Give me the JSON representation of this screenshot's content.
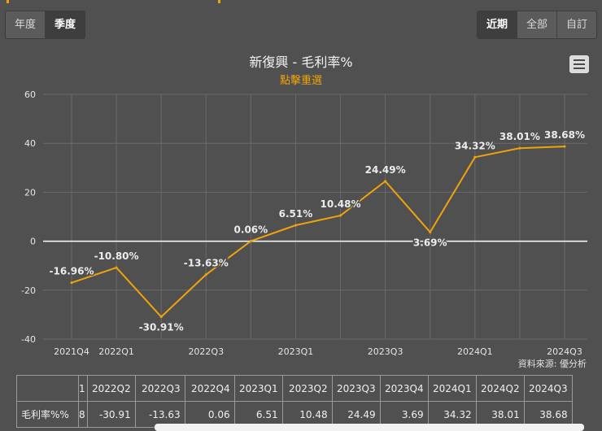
{
  "period_tabs": [
    {
      "label": "年度",
      "active": false
    },
    {
      "label": "季度",
      "active": true
    }
  ],
  "range_tabs": [
    {
      "label": "近期",
      "active": true
    },
    {
      "label": "全部",
      "active": false
    },
    {
      "label": "自訂",
      "active": false
    }
  ],
  "chart": {
    "title": "新復興 - 毛利率%",
    "subtitle": "點擊重選",
    "menu_icon": "hamburger-menu-icon",
    "source": "資料來源: 優分析"
  },
  "chart_data": {
    "type": "line",
    "title": "新復興 - 毛利率%",
    "subtitle": "點擊重選",
    "x": [
      "2021Q4",
      "2022Q1",
      "2022Q2",
      "2022Q3",
      "2022Q4",
      "2023Q1",
      "2023Q2",
      "2023Q3",
      "2023Q4",
      "2024Q1",
      "2024Q2",
      "2024Q3"
    ],
    "x_tick_labels": [
      "2021Q4",
      "2022Q1",
      "2022Q3",
      "2023Q1",
      "2023Q3",
      "2024Q1",
      "2024Q3"
    ],
    "series": [
      {
        "values": [
          -16.96,
          -10.8,
          -30.91,
          -13.63,
          0.06,
          6.51,
          10.48,
          24.49,
          3.69,
          34.32,
          38.01,
          38.68
        ],
        "labels": [
          "-16.96%",
          "-10.80%",
          "-30.91%",
          "-13.63%",
          "0.06%",
          "6.51%",
          "10.48%",
          "24.49%",
          "3.69%",
          "34.32%",
          "38.01%",
          "38.68%"
        ],
        "color": "#f0a30a"
      }
    ],
    "yticks": [
      "60",
      "40",
      "20",
      "0",
      "-20",
      "-40"
    ],
    "ylim": [
      -40,
      60
    ],
    "grid": true,
    "zero_line_color": "#ffffff",
    "grid_color": "#6a6a6a"
  },
  "table": {
    "headers": [
      "",
      "1",
      "2022Q2",
      "2022Q3",
      "2022Q4",
      "2023Q1",
      "2023Q2",
      "2023Q3",
      "2023Q4",
      "2024Q1",
      "2024Q2",
      "2024Q3"
    ],
    "row": [
      "毛利率%%",
      "8",
      "-30.91",
      "-13.63",
      "0.06",
      "6.51",
      "10.48",
      "24.49",
      "3.69",
      "34.32",
      "38.01",
      "38.68"
    ]
  },
  "colors": {
    "background": "#505050",
    "accent": "#f0a30a"
  }
}
